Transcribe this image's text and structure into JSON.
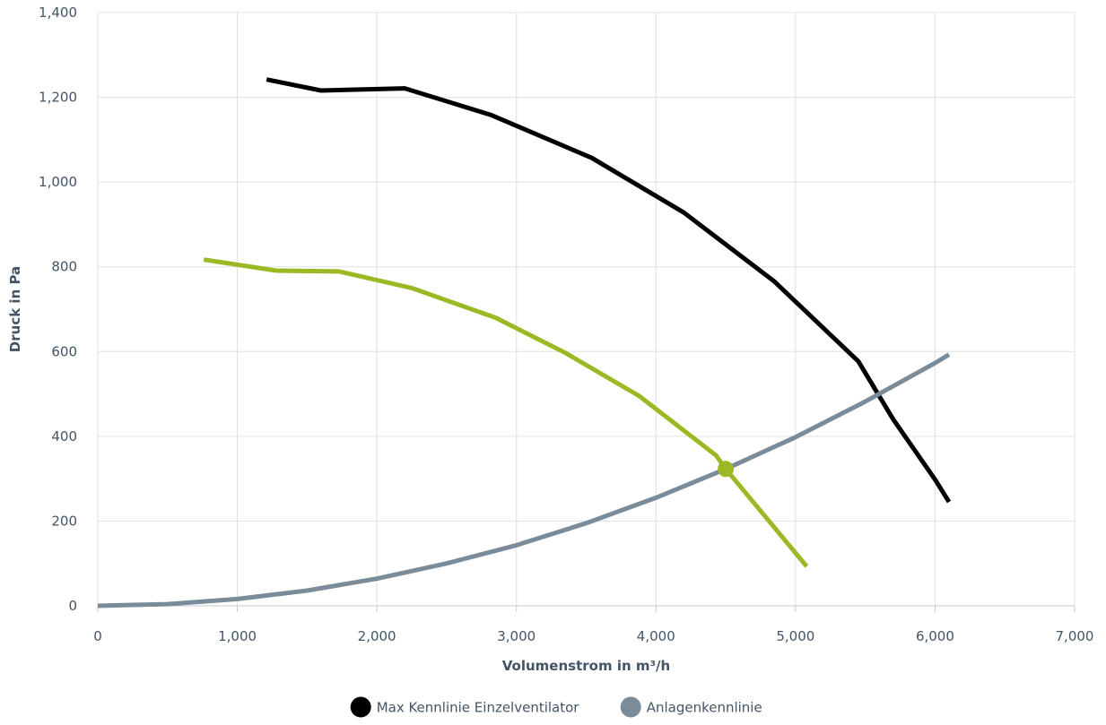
{
  "chart_data": {
    "type": "line",
    "title": "",
    "xlabel": "Volumenstrom in m³/h",
    "ylabel": "Druck in Pa",
    "xlim": [
      0,
      7000
    ],
    "ylim": [
      0,
      1400
    ],
    "x_ticks": [
      0,
      1000,
      2000,
      3000,
      4000,
      5000,
      6000,
      7000
    ],
    "x_tick_labels": [
      "0",
      "1,000",
      "2,000",
      "3,000",
      "4,000",
      "5,000",
      "6,000",
      "7,000"
    ],
    "y_ticks": [
      0,
      200,
      400,
      600,
      800,
      1000,
      1200,
      1400
    ],
    "y_tick_labels": [
      "0",
      "200",
      "400",
      "600",
      "800",
      "1,000",
      "1,200",
      "1,400"
    ],
    "grid": true,
    "legend_position": "bottom-center",
    "series": [
      {
        "name": "Max Kennlinie Einzelventilator",
        "color": "#000000",
        "in_legend": true,
        "x": [
          1210,
          1600,
          2200,
          2820,
          3540,
          4200,
          4850,
          5450,
          5700,
          6000,
          6100
        ],
        "y": [
          1242,
          1216,
          1221,
          1158,
          1057,
          928,
          765,
          577,
          440,
          298,
          245
        ]
      },
      {
        "name": "Anlagenkennlinie",
        "color": "#7a8b9a",
        "in_legend": true,
        "x": [
          0,
          500,
          1000,
          1500,
          2000,
          2500,
          3000,
          3500,
          4000,
          4500,
          5000,
          5500,
          6000,
          6100
        ],
        "y": [
          0,
          4,
          16,
          36,
          64,
          100,
          143,
          195,
          255,
          323,
          398,
          482,
          573,
          593
        ]
      },
      {
        "name": "",
        "color": "#9ab924",
        "in_legend": false,
        "x": [
          760,
          1280,
          1730,
          2250,
          2850,
          3350,
          3880,
          4430,
          4500,
          5080
        ],
        "y": [
          817,
          791,
          789,
          750,
          680,
          597,
          495,
          355,
          323,
          93
        ]
      }
    ],
    "operating_point": {
      "x": 4500,
      "y": 323,
      "color": "#9ab924"
    }
  }
}
